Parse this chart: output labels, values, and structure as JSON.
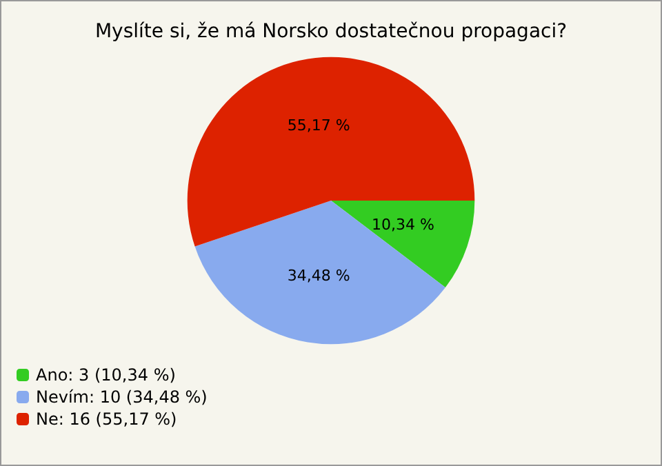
{
  "chart_data": {
    "type": "pie",
    "title": "Myslíte si, že má Norsko dostatečnou propagaci?",
    "categories": [
      "Ano: 3 (10,34 %)",
      "Nevím: 10 (34,48 %)",
      "Ne: 16 (55,17 %)"
    ],
    "values": [
      10.34,
      34.48,
      55.17
    ],
    "value_labels": [
      "10,34 %",
      "34,48 %",
      "55,17 %"
    ],
    "colors": [
      "#33cc22",
      "#88aaee",
      "#dd2200"
    ],
    "legend": "bottom left"
  }
}
